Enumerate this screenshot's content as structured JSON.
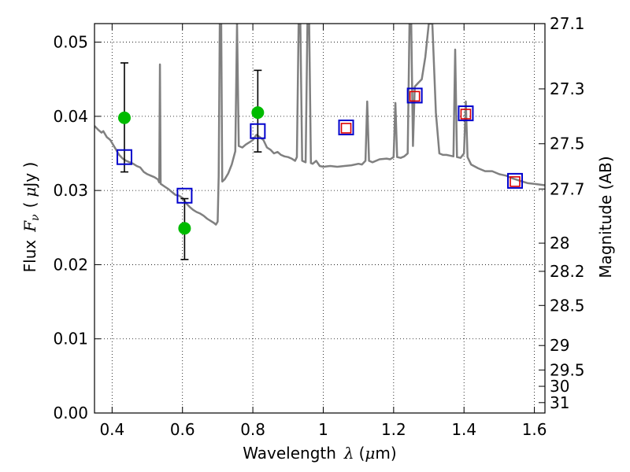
{
  "chart_data": {
    "type": "line",
    "xlabel": "Wavelength",
    "xlabel_symbol": "λ",
    "xlabel_unit_prefix": "(",
    "xlabel_unit_mu": "μ",
    "xlabel_unit_rest": "m)",
    "ylabel": "Flux",
    "ylabel_symbol": "F",
    "ylabel_subscript": "ν",
    "ylabel_unit_prefix": "(",
    "ylabel_unit_mu": "μ",
    "ylabel_unit_rest": "Jy )",
    "y2label": "Magnitude (AB)",
    "xlim": [
      0.35,
      1.63
    ],
    "ylim": [
      0.0,
      0.0525
    ],
    "grid": true,
    "x_ticks": [
      {
        "value": 0.4,
        "label": "0.4"
      },
      {
        "value": 0.6,
        "label": "0.6"
      },
      {
        "value": 0.8,
        "label": "0.8"
      },
      {
        "value": 1.0,
        "label": "1"
      },
      {
        "value": 1.2,
        "label": "1.2"
      },
      {
        "value": 1.4,
        "label": "1.4"
      },
      {
        "value": 1.6,
        "label": "1.6"
      }
    ],
    "y_ticks": [
      {
        "value": 0.0,
        "label": "0.00"
      },
      {
        "value": 0.01,
        "label": "0.01"
      },
      {
        "value": 0.02,
        "label": "0.02"
      },
      {
        "value": 0.03,
        "label": "0.03"
      },
      {
        "value": 0.04,
        "label": "0.04"
      },
      {
        "value": 0.05,
        "label": "0.05"
      }
    ],
    "y2_ticks": [
      {
        "flux": 0.0525,
        "label": "27.1"
      },
      {
        "flux": 0.0437,
        "label": "27.3"
      },
      {
        "flux": 0.0363,
        "label": "27.5"
      },
      {
        "flux": 0.0302,
        "label": "27.7"
      },
      {
        "flux": 0.0229,
        "label": "28"
      },
      {
        "flux": 0.0191,
        "label": "28.2"
      },
      {
        "flux": 0.0145,
        "label": "28.5"
      },
      {
        "flux": 0.0091,
        "label": "29"
      },
      {
        "flux": 0.0058,
        "label": "29.5"
      },
      {
        "flux": 0.0036,
        "label": "30"
      },
      {
        "flux": 0.0014,
        "label": "31"
      }
    ],
    "series": [
      {
        "name": "model spectrum",
        "color": "#808080",
        "points": [
          [
            0.35,
            0.0387
          ],
          [
            0.36,
            0.0382
          ],
          [
            0.37,
            0.0378
          ],
          [
            0.375,
            0.038
          ],
          [
            0.38,
            0.0376
          ],
          [
            0.385,
            0.0372
          ],
          [
            0.39,
            0.037
          ],
          [
            0.395,
            0.0368
          ],
          [
            0.4,
            0.0364
          ],
          [
            0.41,
            0.0356
          ],
          [
            0.42,
            0.0348
          ],
          [
            0.43,
            0.0343
          ],
          [
            0.44,
            0.034
          ],
          [
            0.45,
            0.0338
          ],
          [
            0.46,
            0.0336
          ],
          [
            0.47,
            0.0333
          ],
          [
            0.48,
            0.0331
          ],
          [
            0.49,
            0.0325
          ],
          [
            0.5,
            0.0322
          ],
          [
            0.51,
            0.032
          ],
          [
            0.52,
            0.0318
          ],
          [
            0.53,
            0.0315
          ],
          [
            0.534,
            0.0311
          ],
          [
            0.536,
            0.047
          ],
          [
            0.538,
            0.0309
          ],
          [
            0.55,
            0.0305
          ],
          [
            0.56,
            0.0302
          ],
          [
            0.57,
            0.0298
          ],
          [
            0.58,
            0.0294
          ],
          [
            0.59,
            0.0293
          ],
          [
            0.6,
            0.029
          ],
          [
            0.61,
            0.0283
          ],
          [
            0.62,
            0.0278
          ],
          [
            0.63,
            0.0274
          ],
          [
            0.64,
            0.0271
          ],
          [
            0.65,
            0.0269
          ],
          [
            0.66,
            0.0266
          ],
          [
            0.67,
            0.0262
          ],
          [
            0.68,
            0.0259
          ],
          [
            0.69,
            0.0256
          ],
          [
            0.695,
            0.0254
          ],
          [
            0.7,
            0.0258
          ],
          [
            0.703,
            0.032
          ],
          [
            0.706,
            0.0525
          ],
          [
            0.71,
            0.0525
          ],
          [
            0.713,
            0.0312
          ],
          [
            0.72,
            0.0315
          ],
          [
            0.73,
            0.0323
          ],
          [
            0.74,
            0.0335
          ],
          [
            0.75,
            0.0353
          ],
          [
            0.755,
            0.0525
          ],
          [
            0.76,
            0.036
          ],
          [
            0.77,
            0.0358
          ],
          [
            0.78,
            0.0362
          ],
          [
            0.79,
            0.0365
          ],
          [
            0.8,
            0.0368
          ],
          [
            0.81,
            0.0375
          ],
          [
            0.82,
            0.0372
          ],
          [
            0.83,
            0.0368
          ],
          [
            0.84,
            0.0358
          ],
          [
            0.85,
            0.0355
          ],
          [
            0.86,
            0.035
          ],
          [
            0.87,
            0.0352
          ],
          [
            0.88,
            0.0348
          ],
          [
            0.89,
            0.0346
          ],
          [
            0.9,
            0.0345
          ],
          [
            0.91,
            0.0343
          ],
          [
            0.92,
            0.034
          ],
          [
            0.925,
            0.0345
          ],
          [
            0.93,
            0.0525
          ],
          [
            0.935,
            0.0525
          ],
          [
            0.94,
            0.034
          ],
          [
            0.95,
            0.0338
          ],
          [
            0.955,
            0.0525
          ],
          [
            0.96,
            0.0525
          ],
          [
            0.965,
            0.0337
          ],
          [
            0.97,
            0.0336
          ],
          [
            0.98,
            0.034
          ],
          [
            0.99,
            0.0333
          ],
          [
            1.0,
            0.0332
          ],
          [
            1.02,
            0.0333
          ],
          [
            1.04,
            0.0332
          ],
          [
            1.06,
            0.0333
          ],
          [
            1.08,
            0.0334
          ],
          [
            1.1,
            0.0336
          ],
          [
            1.11,
            0.0335
          ],
          [
            1.12,
            0.034
          ],
          [
            1.125,
            0.042
          ],
          [
            1.13,
            0.034
          ],
          [
            1.14,
            0.0338
          ],
          [
            1.16,
            0.0342
          ],
          [
            1.18,
            0.0343
          ],
          [
            1.19,
            0.0342
          ],
          [
            1.2,
            0.0345
          ],
          [
            1.205,
            0.0418
          ],
          [
            1.21,
            0.0345
          ],
          [
            1.22,
            0.0344
          ],
          [
            1.23,
            0.0346
          ],
          [
            1.24,
            0.035
          ],
          [
            1.245,
            0.0525
          ],
          [
            1.25,
            0.0525
          ],
          [
            1.255,
            0.036
          ],
          [
            1.26,
            0.044
          ],
          [
            1.27,
            0.0445
          ],
          [
            1.28,
            0.045
          ],
          [
            1.29,
            0.048
          ],
          [
            1.3,
            0.0525
          ],
          [
            1.31,
            0.0525
          ],
          [
            1.32,
            0.0405
          ],
          [
            1.33,
            0.035
          ],
          [
            1.34,
            0.0348
          ],
          [
            1.35,
            0.0348
          ],
          [
            1.36,
            0.0347
          ],
          [
            1.37,
            0.0346
          ],
          [
            1.375,
            0.049
          ],
          [
            1.38,
            0.0345
          ],
          [
            1.39,
            0.0344
          ],
          [
            1.4,
            0.035
          ],
          [
            1.405,
            0.042
          ],
          [
            1.41,
            0.0345
          ],
          [
            1.42,
            0.0335
          ],
          [
            1.44,
            0.033
          ],
          [
            1.46,
            0.0326
          ],
          [
            1.48,
            0.0326
          ],
          [
            1.5,
            0.0322
          ],
          [
            1.52,
            0.032
          ],
          [
            1.54,
            0.0316
          ],
          [
            1.56,
            0.0313
          ],
          [
            1.58,
            0.031
          ],
          [
            1.6,
            0.0309
          ],
          [
            1.63,
            0.0307
          ]
        ]
      },
      {
        "name": "observed photometry (green)",
        "color": "#00bb00",
        "points": [
          {
            "x": 0.435,
            "y": 0.0398,
            "err": null
          },
          {
            "x": 0.606,
            "y": 0.0249,
            "err": [
              0.0207,
              0.0289
            ]
          },
          {
            "x": 0.814,
            "y": 0.0405,
            "err": [
              0.0352,
              0.0462
            ]
          }
        ]
      },
      {
        "name": "error bar top (unmatched)",
        "color": "#000000",
        "points": [
          {
            "x": 0.435,
            "y_low": 0.0325,
            "y_high": 0.0472
          }
        ]
      },
      {
        "name": "model synthetic photometry (blue squares)",
        "color": "#0000cc",
        "points": [
          {
            "x": 0.435,
            "y": 0.0345
          },
          {
            "x": 0.606,
            "y": 0.0293
          },
          {
            "x": 0.814,
            "y": 0.038
          },
          {
            "x": 1.065,
            "y": 0.0385
          },
          {
            "x": 1.26,
            "y": 0.0428
          },
          {
            "x": 1.405,
            "y": 0.0404
          },
          {
            "x": 1.545,
            "y": 0.0313
          }
        ]
      },
      {
        "name": "observed photometry (red squares)",
        "color": "#dd0000",
        "points": [
          {
            "x": 1.065,
            "y": 0.0384
          },
          {
            "x": 1.26,
            "y": 0.0427
          },
          {
            "x": 1.405,
            "y": 0.0403
          },
          {
            "x": 1.545,
            "y": 0.0312
          }
        ]
      }
    ]
  }
}
